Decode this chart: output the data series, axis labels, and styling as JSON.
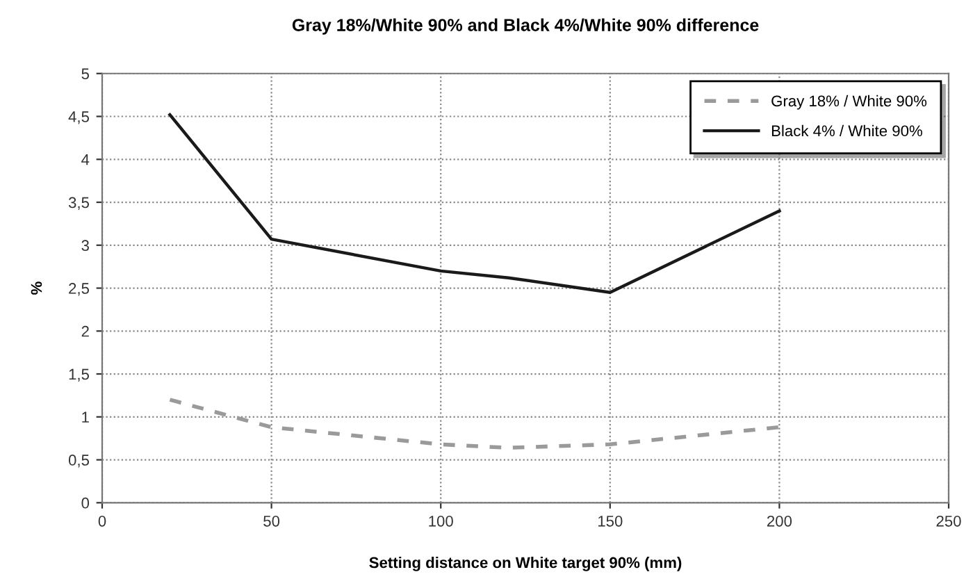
{
  "chart_data": {
    "type": "line",
    "title": "Gray 18%/White 90% and Black 4%/White 90% difference",
    "xlabel": "Setting distance on White target 90% (mm)",
    "ylabel": "%",
    "x": [
      20,
      50,
      100,
      120,
      150,
      200
    ],
    "series": [
      {
        "name": "Gray 18% / White 90%",
        "color": "#9a9a9a",
        "line_style": "dashed",
        "values": [
          1.2,
          0.88,
          0.68,
          0.64,
          0.68,
          0.88
        ]
      },
      {
        "name": "Black 4% / White 90%",
        "color": "#1a1a1a",
        "line_style": "solid",
        "values": [
          4.52,
          3.07,
          2.7,
          2.62,
          2.45,
          3.4
        ]
      }
    ],
    "xlim": [
      0,
      250
    ],
    "xticks": [
      0,
      50,
      100,
      150,
      200,
      250
    ],
    "ylim": [
      0,
      5
    ],
    "yticks": [
      0,
      {
        "value": 0.5,
        "label": "0,5"
      },
      1,
      {
        "value": 1.5,
        "label": "1,5"
      },
      2,
      {
        "value": 2.5,
        "label": "2,5"
      },
      3,
      {
        "value": 3.5,
        "label": "3,5"
      },
      4,
      {
        "value": 4.5,
        "label": "4,5"
      },
      5
    ],
    "grid": true,
    "legend": "top right",
    "marker": "none"
  }
}
